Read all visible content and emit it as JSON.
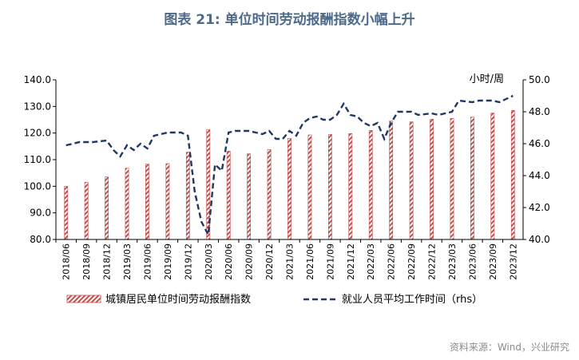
{
  "title": "图表 21: 单位时间劳动报酬指数小幅上升",
  "source": "资料来源：Wind，兴业研究",
  "chart_data": {
    "type": "bar",
    "x": [
      "2018/06",
      "2018/09",
      "2018/12",
      "2019/03",
      "2019/06",
      "2019/09",
      "2019/12",
      "2020/03",
      "2020/06",
      "2020/09",
      "2020/12",
      "2021/03",
      "2021/06",
      "2021/09",
      "2021/12",
      "2022/03",
      "2022/06",
      "2022/09",
      "2022/12",
      "2023/03",
      "2023/06",
      "2023/09",
      "2023/12"
    ],
    "x_tick_labels": [
      "2018/06",
      "2018/09",
      "2018/12",
      "2019/03",
      "2019/06",
      "2019/09",
      "2019/12",
      "2020/03",
      "2020/06",
      "2020/09",
      "2020/12",
      "2021/03",
      "2021/06",
      "2021/09",
      "2021/12",
      "2022/03",
      "2022/06",
      "2022/09",
      "2022/12",
      "2023/03",
      "2023/06",
      "2023/09",
      "2023/12"
    ],
    "y_left": {
      "min": 80,
      "max": 140,
      "step": 10,
      "tick_labels": [
        "80.0",
        "90.0",
        "100.0",
        "110.0",
        "120.0",
        "130.0",
        "140.0"
      ]
    },
    "y_right": {
      "min": 40,
      "max": 50,
      "step": 2,
      "tick_labels": [
        "40.0",
        "42.0",
        "44.0",
        "46.0",
        "48.0",
        "50.0"
      ],
      "unit_label": "小时/周"
    },
    "grid": false,
    "legend_position": "bottom",
    "bar_series": {
      "name": "城镇居民单位时间劳动报酬指数",
      "axis": "left",
      "color": "#c0504d",
      "values": [
        100.0,
        101.5,
        103.5,
        106.8,
        108.3,
        108.5,
        112.8,
        121.3,
        113.2,
        112.2,
        113.8,
        118.0,
        119.3,
        119.5,
        119.8,
        121.0,
        124.5,
        124.2,
        125.2,
        125.5,
        126.0,
        127.5,
        128.5
      ]
    },
    "line_series": {
      "name": "就业人员平均工作时间（rhs）",
      "axis": "right",
      "color": "#1f3864",
      "x": [
        "2018/06",
        "2018/08",
        "2018/09",
        "2018/10",
        "2018/12",
        "2019/01",
        "2019/02",
        "2019/03",
        "2019/04",
        "2019/05",
        "2019/06",
        "2019/07",
        "2019/09",
        "2019/11",
        "2019/12",
        "2020/01",
        "2020/02",
        "2020/03",
        "2020/04",
        "2020/05",
        "2020/06",
        "2020/07",
        "2020/09",
        "2020/11",
        "2020/12",
        "2021/01",
        "2021/02",
        "2021/03",
        "2021/04",
        "2021/05",
        "2021/06",
        "2021/07",
        "2021/08",
        "2021/09",
        "2021/10",
        "2021/11",
        "2021/12",
        "2022/01",
        "2022/02",
        "2022/03",
        "2022/04",
        "2022/05",
        "2022/06",
        "2022/07",
        "2022/09",
        "2022/10",
        "2022/12",
        "2023/01",
        "2023/02",
        "2023/03",
        "2023/04",
        "2023/06",
        "2023/07",
        "2023/09",
        "2023/10",
        "2023/12"
      ],
      "values": [
        45.9,
        46.1,
        46.1,
        46.1,
        46.2,
        45.6,
        45.2,
        45.9,
        45.6,
        46.0,
        45.7,
        46.5,
        46.7,
        46.7,
        46.5,
        43.0,
        41.1,
        40.3,
        44.7,
        44.3,
        46.7,
        46.8,
        46.8,
        46.6,
        46.8,
        46.3,
        46.3,
        46.8,
        46.5,
        47.3,
        47.6,
        47.7,
        47.5,
        47.5,
        47.8,
        48.5,
        47.8,
        47.7,
        47.3,
        47.1,
        47.3,
        46.3,
        47.3,
        48.0,
        48.0,
        47.8,
        47.9,
        47.8,
        47.9,
        48.0,
        48.7,
        48.6,
        48.7,
        48.7,
        48.6,
        49.0
      ]
    }
  }
}
